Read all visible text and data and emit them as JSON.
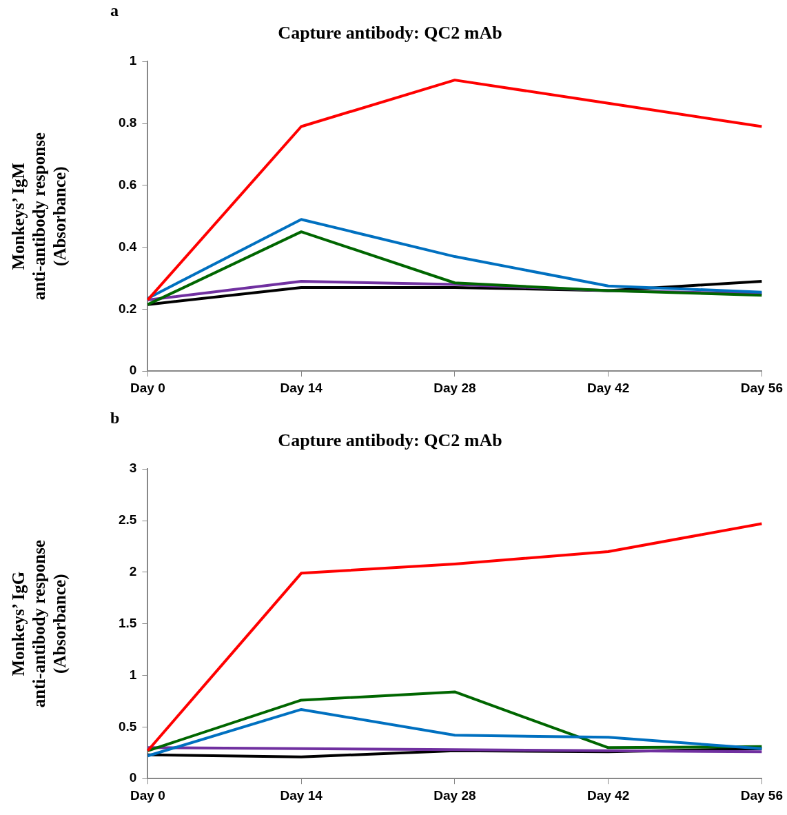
{
  "chart_data": [
    {
      "type": "line",
      "title": "Capture antibody: QC2 mAb",
      "ylabel": "Monkeys’ IgM\nanti-antibody response\n(Absorbance)",
      "annotations": [
        "a"
      ],
      "categories": [
        "Day 0",
        "Day 14",
        "Day 28",
        "Day 42",
        "Day 56"
      ],
      "ylim": [
        0,
        1
      ],
      "yticks": [
        0,
        0.2,
        0.4,
        0.6,
        0.8,
        1
      ],
      "grid": false,
      "legend": false,
      "marker": "none",
      "line_style": "solid",
      "series": [
        {
          "color": "#ff0000",
          "values": [
            0.23,
            0.79,
            0.94,
            0.865,
            0.79
          ]
        },
        {
          "color": "#0070c0",
          "values": [
            0.235,
            0.49,
            0.37,
            0.275,
            0.255
          ]
        },
        {
          "color": "#006600",
          "values": [
            0.215,
            0.45,
            0.285,
            0.26,
            0.245
          ]
        },
        {
          "color": "#7030a0",
          "values": [
            0.23,
            0.29,
            0.28,
            0.26,
            0.25
          ]
        },
        {
          "color": "#000000",
          "values": [
            0.215,
            0.27,
            0.27,
            0.26,
            0.29
          ]
        }
      ]
    },
    {
      "type": "line",
      "title": "Capture antibody: QC2 mAb",
      "ylabel": "Monkeys’ IgG\nanti-antibody response\n(Absorbance)",
      "annotations": [
        "b"
      ],
      "categories": [
        "Day 0",
        "Day 14",
        "Day 28",
        "Day 42",
        "Day 56"
      ],
      "ylim": [
        0,
        3
      ],
      "yticks": [
        0,
        0.5,
        1,
        1.5,
        2,
        2.5,
        3
      ],
      "grid": false,
      "legend": false,
      "marker": "none",
      "line_style": "solid",
      "series": [
        {
          "color": "#ff0000",
          "values": [
            0.27,
            1.99,
            2.08,
            2.2,
            2.47
          ]
        },
        {
          "color": "#0070c0",
          "values": [
            0.22,
            0.67,
            0.42,
            0.4,
            0.29
          ]
        },
        {
          "color": "#006600",
          "values": [
            0.27,
            0.76,
            0.84,
            0.3,
            0.31
          ]
        },
        {
          "color": "#7030a0",
          "values": [
            0.3,
            0.29,
            0.28,
            0.27,
            0.26
          ]
        },
        {
          "color": "#000000",
          "values": [
            0.23,
            0.21,
            0.27,
            0.26,
            0.29
          ]
        }
      ]
    }
  ]
}
